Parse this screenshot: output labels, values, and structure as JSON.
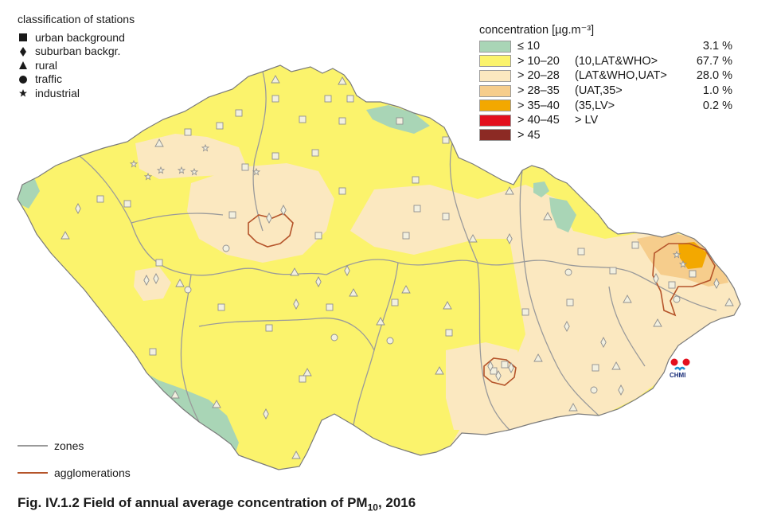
{
  "stations_legend": {
    "title": "classification of stations",
    "items": [
      {
        "symbol": "square-icon",
        "label": "urban background"
      },
      {
        "symbol": "diamond-icon",
        "label": "suburban backgr."
      },
      {
        "symbol": "triangle-icon",
        "label": "rural"
      },
      {
        "symbol": "circle-icon",
        "label": "traffic"
      },
      {
        "symbol": "star-icon",
        "label": "industrial"
      }
    ]
  },
  "concentration_legend": {
    "title": "concentration [µg.m⁻³]",
    "items": [
      {
        "range": "≤ 10",
        "interval": "",
        "percent": "3.1 %",
        "color": "#a9d5b6"
      },
      {
        "range": "> 10–20",
        "interval": "(10,LAT&WHO>",
        "percent": "67.7 %",
        "color": "#fbf36c"
      },
      {
        "range": "> 20–28",
        "interval": "(LAT&WHO,UAT>",
        "percent": "28.0 %",
        "color": "#fbe8c0"
      },
      {
        "range": "> 28–35",
        "interval": "(UAT,35>",
        "percent": "1.0 %",
        "color": "#f6cd8c"
      },
      {
        "range": "> 35–40",
        "interval": "(35,LV>",
        "percent": "0.2 %",
        "color": "#f3a800"
      },
      {
        "range": "> 40–45",
        "interval": "> LV",
        "percent": "",
        "color": "#e3101e"
      },
      {
        "range": "> 45",
        "interval": "",
        "percent": "",
        "color": "#8c2a24"
      }
    ]
  },
  "lines_legend": {
    "zones_label": "zones",
    "zones_color": "#9a9a9a",
    "agglomerations_label": "agglomerations",
    "agglomerations_color": "#b5542a"
  },
  "caption": {
    "prefix": "Fig. IV.1.2  Field of annual average concentration of PM",
    "subscript": "10",
    "suffix": ", 2016"
  },
  "logo": {
    "text": "CHMI"
  }
}
